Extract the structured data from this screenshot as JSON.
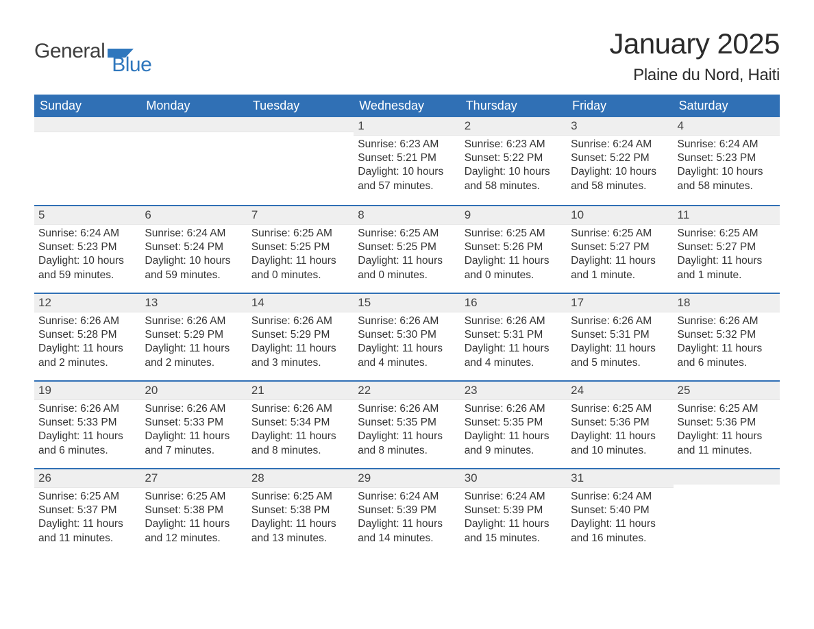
{
  "logo": {
    "text1": "General",
    "text2": "Blue"
  },
  "title": "January 2025",
  "location": "Plaine du Nord, Haiti",
  "colors": {
    "header_bg": "#3070b5",
    "header_text": "#ffffff",
    "daynum_bg": "#efefef",
    "page_bg": "#ffffff",
    "text": "#343434",
    "logo_gray": "#3f3f3f",
    "logo_blue": "#2f77bd",
    "week_border": "#3070b5"
  },
  "typography": {
    "title_fontsize": 42,
    "location_fontsize": 24,
    "header_fontsize": 18,
    "body_fontsize": 15.5,
    "font_family": "Arial"
  },
  "day_headers": [
    "Sunday",
    "Monday",
    "Tuesday",
    "Wednesday",
    "Thursday",
    "Friday",
    "Saturday"
  ],
  "weeks": [
    [
      {
        "n": "",
        "sunrise": "",
        "sunset": "",
        "daylight": ""
      },
      {
        "n": "",
        "sunrise": "",
        "sunset": "",
        "daylight": ""
      },
      {
        "n": "",
        "sunrise": "",
        "sunset": "",
        "daylight": ""
      },
      {
        "n": "1",
        "sunrise": "Sunrise: 6:23 AM",
        "sunset": "Sunset: 5:21 PM",
        "daylight": "Daylight: 10 hours and 57 minutes."
      },
      {
        "n": "2",
        "sunrise": "Sunrise: 6:23 AM",
        "sunset": "Sunset: 5:22 PM",
        "daylight": "Daylight: 10 hours and 58 minutes."
      },
      {
        "n": "3",
        "sunrise": "Sunrise: 6:24 AM",
        "sunset": "Sunset: 5:22 PM",
        "daylight": "Daylight: 10 hours and 58 minutes."
      },
      {
        "n": "4",
        "sunrise": "Sunrise: 6:24 AM",
        "sunset": "Sunset: 5:23 PM",
        "daylight": "Daylight: 10 hours and 58 minutes."
      }
    ],
    [
      {
        "n": "5",
        "sunrise": "Sunrise: 6:24 AM",
        "sunset": "Sunset: 5:23 PM",
        "daylight": "Daylight: 10 hours and 59 minutes."
      },
      {
        "n": "6",
        "sunrise": "Sunrise: 6:24 AM",
        "sunset": "Sunset: 5:24 PM",
        "daylight": "Daylight: 10 hours and 59 minutes."
      },
      {
        "n": "7",
        "sunrise": "Sunrise: 6:25 AM",
        "sunset": "Sunset: 5:25 PM",
        "daylight": "Daylight: 11 hours and 0 minutes."
      },
      {
        "n": "8",
        "sunrise": "Sunrise: 6:25 AM",
        "sunset": "Sunset: 5:25 PM",
        "daylight": "Daylight: 11 hours and 0 minutes."
      },
      {
        "n": "9",
        "sunrise": "Sunrise: 6:25 AM",
        "sunset": "Sunset: 5:26 PM",
        "daylight": "Daylight: 11 hours and 0 minutes."
      },
      {
        "n": "10",
        "sunrise": "Sunrise: 6:25 AM",
        "sunset": "Sunset: 5:27 PM",
        "daylight": "Daylight: 11 hours and 1 minute."
      },
      {
        "n": "11",
        "sunrise": "Sunrise: 6:25 AM",
        "sunset": "Sunset: 5:27 PM",
        "daylight": "Daylight: 11 hours and 1 minute."
      }
    ],
    [
      {
        "n": "12",
        "sunrise": "Sunrise: 6:26 AM",
        "sunset": "Sunset: 5:28 PM",
        "daylight": "Daylight: 11 hours and 2 minutes."
      },
      {
        "n": "13",
        "sunrise": "Sunrise: 6:26 AM",
        "sunset": "Sunset: 5:29 PM",
        "daylight": "Daylight: 11 hours and 2 minutes."
      },
      {
        "n": "14",
        "sunrise": "Sunrise: 6:26 AM",
        "sunset": "Sunset: 5:29 PM",
        "daylight": "Daylight: 11 hours and 3 minutes."
      },
      {
        "n": "15",
        "sunrise": "Sunrise: 6:26 AM",
        "sunset": "Sunset: 5:30 PM",
        "daylight": "Daylight: 11 hours and 4 minutes."
      },
      {
        "n": "16",
        "sunrise": "Sunrise: 6:26 AM",
        "sunset": "Sunset: 5:31 PM",
        "daylight": "Daylight: 11 hours and 4 minutes."
      },
      {
        "n": "17",
        "sunrise": "Sunrise: 6:26 AM",
        "sunset": "Sunset: 5:31 PM",
        "daylight": "Daylight: 11 hours and 5 minutes."
      },
      {
        "n": "18",
        "sunrise": "Sunrise: 6:26 AM",
        "sunset": "Sunset: 5:32 PM",
        "daylight": "Daylight: 11 hours and 6 minutes."
      }
    ],
    [
      {
        "n": "19",
        "sunrise": "Sunrise: 6:26 AM",
        "sunset": "Sunset: 5:33 PM",
        "daylight": "Daylight: 11 hours and 6 minutes."
      },
      {
        "n": "20",
        "sunrise": "Sunrise: 6:26 AM",
        "sunset": "Sunset: 5:33 PM",
        "daylight": "Daylight: 11 hours and 7 minutes."
      },
      {
        "n": "21",
        "sunrise": "Sunrise: 6:26 AM",
        "sunset": "Sunset: 5:34 PM",
        "daylight": "Daylight: 11 hours and 8 minutes."
      },
      {
        "n": "22",
        "sunrise": "Sunrise: 6:26 AM",
        "sunset": "Sunset: 5:35 PM",
        "daylight": "Daylight: 11 hours and 8 minutes."
      },
      {
        "n": "23",
        "sunrise": "Sunrise: 6:26 AM",
        "sunset": "Sunset: 5:35 PM",
        "daylight": "Daylight: 11 hours and 9 minutes."
      },
      {
        "n": "24",
        "sunrise": "Sunrise: 6:25 AM",
        "sunset": "Sunset: 5:36 PM",
        "daylight": "Daylight: 11 hours and 10 minutes."
      },
      {
        "n": "25",
        "sunrise": "Sunrise: 6:25 AM",
        "sunset": "Sunset: 5:36 PM",
        "daylight": "Daylight: 11 hours and 11 minutes."
      }
    ],
    [
      {
        "n": "26",
        "sunrise": "Sunrise: 6:25 AM",
        "sunset": "Sunset: 5:37 PM",
        "daylight": "Daylight: 11 hours and 11 minutes."
      },
      {
        "n": "27",
        "sunrise": "Sunrise: 6:25 AM",
        "sunset": "Sunset: 5:38 PM",
        "daylight": "Daylight: 11 hours and 12 minutes."
      },
      {
        "n": "28",
        "sunrise": "Sunrise: 6:25 AM",
        "sunset": "Sunset: 5:38 PM",
        "daylight": "Daylight: 11 hours and 13 minutes."
      },
      {
        "n": "29",
        "sunrise": "Sunrise: 6:24 AM",
        "sunset": "Sunset: 5:39 PM",
        "daylight": "Daylight: 11 hours and 14 minutes."
      },
      {
        "n": "30",
        "sunrise": "Sunrise: 6:24 AM",
        "sunset": "Sunset: 5:39 PM",
        "daylight": "Daylight: 11 hours and 15 minutes."
      },
      {
        "n": "31",
        "sunrise": "Sunrise: 6:24 AM",
        "sunset": "Sunset: 5:40 PM",
        "daylight": "Daylight: 11 hours and 16 minutes."
      },
      {
        "n": "",
        "sunrise": "",
        "sunset": "",
        "daylight": ""
      }
    ]
  ]
}
